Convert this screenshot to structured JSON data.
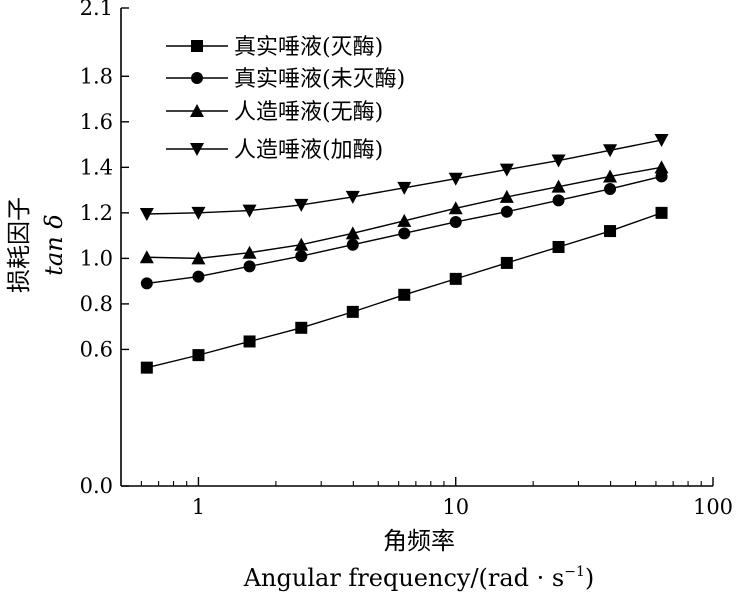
{
  "chart_data": {
    "type": "line",
    "xscale": "log",
    "xlim": [
      0.5,
      100
    ],
    "ylim": [
      0.0,
      2.1
    ],
    "xticks": [
      1,
      10,
      100
    ],
    "xtick_labels": [
      "1",
      "10",
      "100"
    ],
    "yticks": [
      0.0,
      0.6,
      0.8,
      1.0,
      1.2,
      1.4,
      1.6,
      1.8,
      2.1
    ],
    "ytick_labels": [
      "0.0",
      "0.6",
      "0.8",
      "1.0",
      "1.2",
      "1.4",
      "1.6",
      "1.8",
      "2.1"
    ],
    "xlabel_cn": "角频率",
    "xlabel_en": "Angular frequency/(rad · s",
    "xlabel_en_sup": "−1",
    "xlabel_en_close": ")",
    "ylabel_cn": "损耗因子",
    "ylabel_en": "tan δ",
    "grid": false,
    "legend_position": "top-left",
    "x": [
      0.63,
      1.0,
      1.58,
      2.51,
      3.98,
      6.31,
      10,
      15.8,
      25.1,
      39.8,
      63.1
    ],
    "series": [
      {
        "name": "真实唾液(灭酶)",
        "marker": "square",
        "values": [
          0.52,
          0.575,
          0.635,
          0.695,
          0.765,
          0.84,
          0.91,
          0.98,
          1.05,
          1.12,
          1.2
        ]
      },
      {
        "name": "真实唾液(未灭酶)",
        "marker": "circle",
        "values": [
          0.89,
          0.92,
          0.965,
          1.01,
          1.06,
          1.11,
          1.16,
          1.205,
          1.255,
          1.305,
          1.36
        ]
      },
      {
        "name": "人造唾液(无酶)",
        "marker": "triangle-up",
        "values": [
          1.005,
          1.0,
          1.025,
          1.06,
          1.11,
          1.165,
          1.22,
          1.27,
          1.315,
          1.36,
          1.4
        ]
      },
      {
        "name": "人造唾液(加酶)",
        "marker": "triangle-down",
        "values": [
          1.195,
          1.2,
          1.21,
          1.235,
          1.27,
          1.31,
          1.35,
          1.39,
          1.43,
          1.475,
          1.52
        ]
      }
    ]
  }
}
